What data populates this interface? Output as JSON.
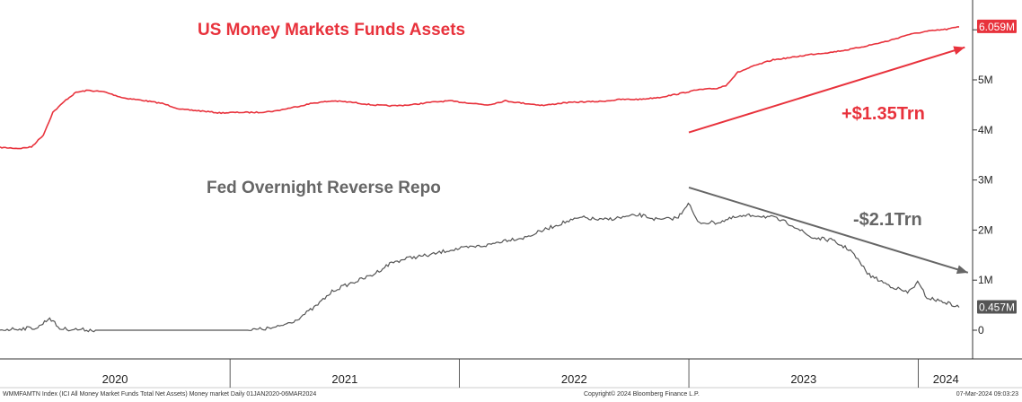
{
  "chart_data": {
    "type": "line",
    "title": "",
    "xlabel": "",
    "ylabel": "",
    "x_range": [
      "2020-01-01",
      "2024-03-06"
    ],
    "ylim": [
      0,
      6500000
    ],
    "y_ticks": [
      {
        "value": 0,
        "label": "0"
      },
      {
        "value": 1000000,
        "label": "1M"
      },
      {
        "value": 2000000,
        "label": "2M"
      },
      {
        "value": 3000000,
        "label": "3M"
      },
      {
        "value": 4000000,
        "label": "4M"
      },
      {
        "value": 5000000,
        "label": "5M"
      }
    ],
    "x_ticks": [
      "2020",
      "2021",
      "2022",
      "2023",
      "2024"
    ],
    "grid": false,
    "series": [
      {
        "name": "US Money Markets Funds Assets",
        "color": "#e8323c",
        "last_value_label": "6.059M",
        "points": [
          [
            "2020-01-01",
            3650000
          ],
          [
            "2020-02-01",
            3630000
          ],
          [
            "2020-02-20",
            3660000
          ],
          [
            "2020-03-10",
            3900000
          ],
          [
            "2020-03-25",
            4350000
          ],
          [
            "2020-04-15",
            4600000
          ],
          [
            "2020-05-01",
            4750000
          ],
          [
            "2020-05-20",
            4790000
          ],
          [
            "2020-06-15",
            4760000
          ],
          [
            "2020-07-15",
            4640000
          ],
          [
            "2020-08-15",
            4590000
          ],
          [
            "2020-09-15",
            4530000
          ],
          [
            "2020-10-15",
            4410000
          ],
          [
            "2020-11-15",
            4380000
          ],
          [
            "2020-12-15",
            4340000
          ],
          [
            "2021-01-15",
            4350000
          ],
          [
            "2021-02-15",
            4350000
          ],
          [
            "2021-03-15",
            4380000
          ],
          [
            "2021-04-15",
            4460000
          ],
          [
            "2021-05-15",
            4540000
          ],
          [
            "2021-06-15",
            4580000
          ],
          [
            "2021-07-15",
            4550000
          ],
          [
            "2021-08-15",
            4500000
          ],
          [
            "2021-09-15",
            4480000
          ],
          [
            "2021-10-15",
            4500000
          ],
          [
            "2021-11-15",
            4550000
          ],
          [
            "2021-12-15",
            4580000
          ],
          [
            "2022-01-15",
            4540000
          ],
          [
            "2022-02-15",
            4500000
          ],
          [
            "2022-03-15",
            4580000
          ],
          [
            "2022-04-15",
            4530000
          ],
          [
            "2022-05-15",
            4490000
          ],
          [
            "2022-06-15",
            4540000
          ],
          [
            "2022-07-15",
            4560000
          ],
          [
            "2022-08-15",
            4570000
          ],
          [
            "2022-09-15",
            4610000
          ],
          [
            "2022-10-15",
            4610000
          ],
          [
            "2022-11-15",
            4650000
          ],
          [
            "2022-12-15",
            4720000
          ],
          [
            "2023-01-15",
            4800000
          ],
          [
            "2023-02-15",
            4830000
          ],
          [
            "2023-03-01",
            4890000
          ],
          [
            "2023-03-20",
            5150000
          ],
          [
            "2023-04-15",
            5280000
          ],
          [
            "2023-05-15",
            5400000
          ],
          [
            "2023-06-15",
            5450000
          ],
          [
            "2023-07-15",
            5510000
          ],
          [
            "2023-08-15",
            5550000
          ],
          [
            "2023-09-15",
            5610000
          ],
          [
            "2023-10-15",
            5690000
          ],
          [
            "2023-11-15",
            5780000
          ],
          [
            "2023-12-15",
            5900000
          ],
          [
            "2024-01-15",
            5970000
          ],
          [
            "2024-02-15",
            6010000
          ],
          [
            "2024-03-06",
            6059000
          ]
        ]
      },
      {
        "name": "Fed Overnight Reverse Repo",
        "color": "#555555",
        "last_value_label": "0.457M",
        "points": [
          [
            "2020-01-01",
            10000
          ],
          [
            "2020-03-01",
            50000
          ],
          [
            "2020-03-20",
            250000
          ],
          [
            "2020-04-05",
            30000
          ],
          [
            "2020-06-01",
            0
          ],
          [
            "2020-12-01",
            0
          ],
          [
            "2021-02-01",
            0
          ],
          [
            "2021-03-15",
            50000
          ],
          [
            "2021-04-15",
            200000
          ],
          [
            "2021-05-15",
            450000
          ],
          [
            "2021-06-15",
            800000
          ],
          [
            "2021-07-15",
            950000
          ],
          [
            "2021-08-15",
            1100000
          ],
          [
            "2021-09-15",
            1350000
          ],
          [
            "2021-10-15",
            1450000
          ],
          [
            "2021-11-15",
            1500000
          ],
          [
            "2021-12-15",
            1600000
          ],
          [
            "2022-01-15",
            1650000
          ],
          [
            "2022-02-15",
            1700000
          ],
          [
            "2022-03-15",
            1800000
          ],
          [
            "2022-04-15",
            1850000
          ],
          [
            "2022-05-15",
            2000000
          ],
          [
            "2022-06-15",
            2150000
          ],
          [
            "2022-07-15",
            2250000
          ],
          [
            "2022-08-15",
            2200000
          ],
          [
            "2022-09-15",
            2250000
          ],
          [
            "2022-10-15",
            2300000
          ],
          [
            "2022-11-15",
            2200000
          ],
          [
            "2022-12-15",
            2250000
          ],
          [
            "2022-12-31",
            2550000
          ],
          [
            "2023-01-15",
            2150000
          ],
          [
            "2023-02-15",
            2150000
          ],
          [
            "2023-03-15",
            2250000
          ],
          [
            "2023-04-15",
            2300000
          ],
          [
            "2023-05-15",
            2250000
          ],
          [
            "2023-06-15",
            2100000
          ],
          [
            "2023-07-15",
            1850000
          ],
          [
            "2023-08-15",
            1800000
          ],
          [
            "2023-09-15",
            1600000
          ],
          [
            "2023-10-15",
            1100000
          ],
          [
            "2023-11-15",
            900000
          ],
          [
            "2023-12-15",
            750000
          ],
          [
            "2023-12-31",
            950000
          ],
          [
            "2024-01-15",
            650000
          ],
          [
            "2024-02-15",
            550000
          ],
          [
            "2024-03-06",
            457000
          ]
        ]
      }
    ],
    "annotations": [
      {
        "text": "US Money Markets Funds Assets",
        "color": "#e8323c"
      },
      {
        "text": "Fed Overnight Reverse Repo",
        "color": "#666666"
      },
      {
        "text": "+$1.35Trn",
        "color": "#e8323c",
        "arrow_from": [
          "2023-01-01",
          3950000
        ],
        "arrow_to": [
          "2024-03-15",
          5650000
        ]
      },
      {
        "text": "-$2.1Trn",
        "color": "#666666",
        "arrow_from": [
          "2023-01-01",
          2850000
        ],
        "arrow_to": [
          "2024-03-20",
          1150000
        ]
      }
    ]
  },
  "footer": {
    "left": "WMMFAMTN Index (ICI All Money Market Funds Total Net Assets) Money market  Daily 01JAN2020-06MAR2024",
    "center": "Copyright© 2024 Bloomberg Finance L.P.",
    "right": "07-Mar-2024 09:03:23"
  }
}
